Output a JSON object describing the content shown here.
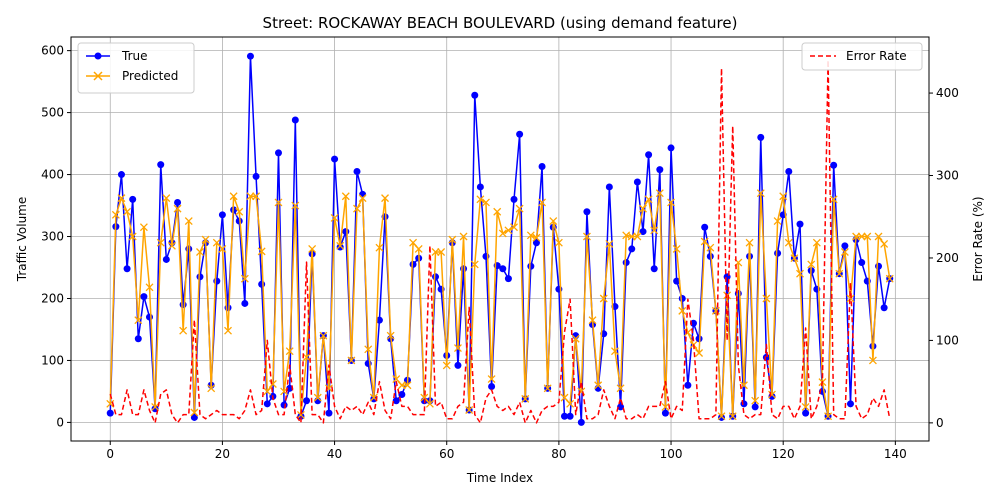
{
  "chart_data": {
    "type": "line",
    "title": "Street: ROCKAWAY BEACH BOULEVARD (using demand feature)",
    "xlabel": "Time Index",
    "ylabel": "Traffic Volume",
    "y2label": "Error Rate (%)",
    "xlim": [
      -7,
      146
    ],
    "ylim": [
      -30,
      622
    ],
    "y2lim": [
      -22,
      468
    ],
    "xticks": [
      0,
      20,
      40,
      60,
      80,
      100,
      120,
      140
    ],
    "yticks": [
      0,
      100,
      200,
      300,
      400,
      500,
      600
    ],
    "y2ticks": [
      0,
      100,
      200,
      300,
      400
    ],
    "grid": true,
    "legend_left": "upper-left",
    "legend_right": "upper-right",
    "series": [
      {
        "name": "True",
        "axis": "left",
        "color": "#0000ff",
        "marker": "o",
        "values": [
          15,
          316,
          400,
          248,
          360,
          135,
          203,
          170,
          22,
          416,
          263,
          290,
          355,
          190,
          280,
          8,
          235,
          290,
          60,
          228,
          335,
          185,
          343,
          325,
          192,
          591,
          397,
          223,
          30,
          42,
          435,
          28,
          55,
          488,
          10,
          35,
          272,
          35,
          140,
          15,
          425,
          283,
          308,
          100,
          405,
          368,
          95,
          38,
          165,
          332,
          135,
          35,
          45,
          68,
          255,
          265,
          35,
          35,
          235,
          215,
          108,
          290,
          92,
          248,
          20,
          528,
          380,
          268,
          58,
          253,
          248,
          232,
          360,
          465,
          38,
          252,
          290,
          413,
          55,
          315,
          215,
          10,
          10,
          140,
          0,
          340,
          158,
          55,
          143,
          380,
          187,
          25,
          258,
          280,
          388,
          308,
          432,
          248,
          408,
          15,
          443,
          228,
          200,
          60,
          160,
          135,
          315,
          268,
          180,
          8,
          235,
          10,
          208,
          30,
          268,
          25,
          460,
          105,
          42,
          273,
          335,
          405,
          265,
          320,
          15,
          245,
          215,
          50,
          10,
          415,
          240,
          285,
          30,
          295,
          258,
          228,
          123,
          252,
          185,
          232
        ]
      },
      {
        "name": "Predicted",
        "axis": "left",
        "color": "#ffa500",
        "marker": "x",
        "values": [
          30,
          335,
          362,
          340,
          300,
          165,
          315,
          218,
          25,
          290,
          362,
          285,
          345,
          148,
          325,
          16,
          275,
          295,
          55,
          290,
          280,
          148,
          365,
          340,
          232,
          365,
          365,
          276,
          50,
          62,
          355,
          50,
          115,
          350,
          12,
          105,
          280,
          40,
          140,
          55,
          330,
          285,
          365,
          100,
          345,
          362,
          118,
          40,
          282,
          362,
          140,
          70,
          60,
          60,
          290,
          280,
          40,
          30,
          275,
          275,
          92,
          295,
          120,
          300,
          20,
          255,
          360,
          355,
          70,
          340,
          305,
          310,
          315,
          345,
          38,
          302,
          298,
          355,
          55,
          325,
          290,
          40,
          30,
          135,
          50,
          300,
          165,
          60,
          200,
          288,
          115,
          55,
          302,
          300,
          300,
          345,
          360,
          310,
          370,
          25,
          355,
          280,
          180,
          145,
          125,
          112,
          292,
          282,
          180,
          10,
          205,
          10,
          258,
          60,
          290,
          35,
          370,
          200,
          45,
          325,
          365,
          290,
          265,
          240,
          25,
          255,
          290,
          65,
          10,
          360,
          240,
          275,
          200,
          300,
          300,
          300,
          100,
          300,
          288,
          232
        ]
      },
      {
        "name": "Error Rate",
        "axis": "right",
        "color": "#ff0000",
        "marker": "",
        "values": [
          35,
          10,
          10,
          40,
          10,
          10,
          40,
          15,
          0,
          35,
          40,
          10,
          0,
          10,
          10,
          125,
          10,
          5,
          10,
          15,
          10,
          10,
          10,
          5,
          15,
          40,
          10,
          15,
          100,
          30,
          10,
          10,
          70,
          10,
          0,
          195,
          10,
          10,
          0,
          70,
          20,
          5,
          20,
          15,
          20,
          10,
          25,
          10,
          50,
          15,
          5,
          50,
          20,
          20,
          10,
          10,
          10,
          215,
          20,
          25,
          5,
          5,
          20,
          25,
          140,
          10,
          0,
          30,
          40,
          20,
          15,
          20,
          10,
          25,
          0,
          15,
          0,
          15,
          20,
          20,
          25,
          110,
          150,
          10,
          50,
          5,
          5,
          10,
          40,
          20,
          5,
          30,
          5,
          5,
          10,
          5,
          20,
          20,
          20,
          50,
          5,
          20,
          15,
          150,
          100,
          5,
          5,
          5,
          10,
          430,
          100,
          360,
          70,
          10,
          5,
          10,
          10,
          95,
          10,
          5,
          20,
          20,
          5,
          20,
          115,
          5,
          20,
          50,
          440,
          10,
          5,
          5,
          170,
          20,
          5,
          10,
          30,
          20,
          40,
          5
        ]
      }
    ]
  }
}
